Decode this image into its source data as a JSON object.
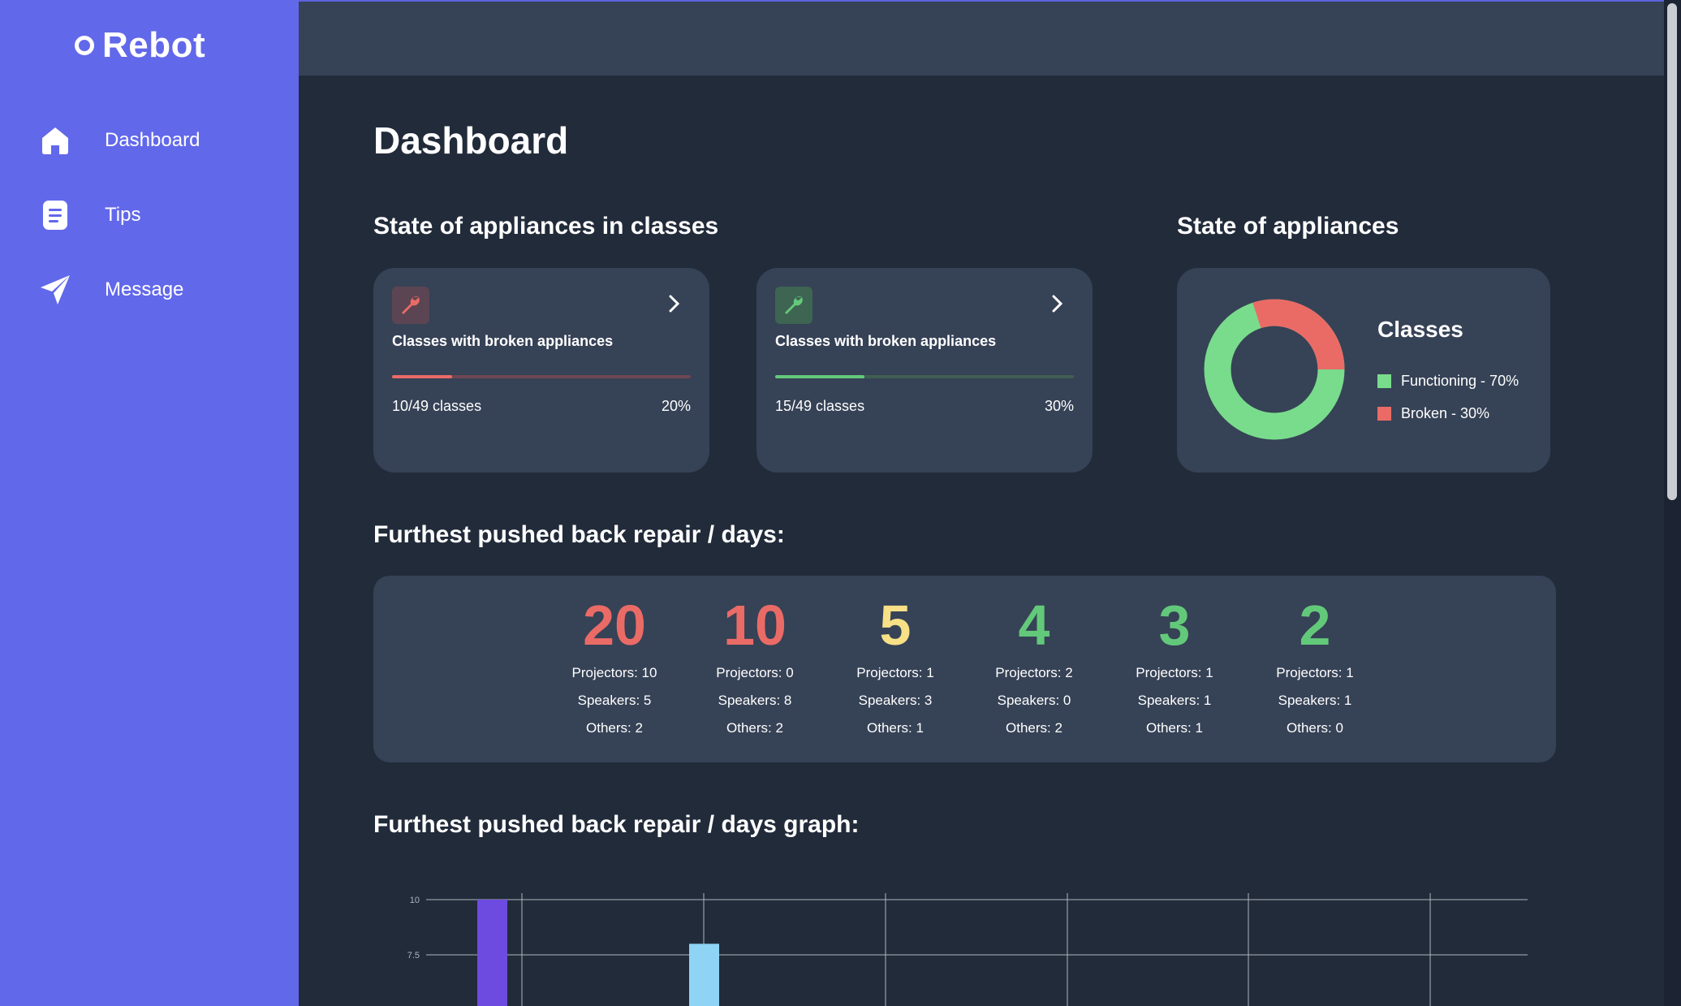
{
  "app": {
    "name": "Rebot"
  },
  "sidebar": {
    "items": [
      {
        "label": "Dashboard",
        "icon": "home-icon"
      },
      {
        "label": "Tips",
        "icon": "document-icon"
      },
      {
        "label": "Message",
        "icon": "send-icon"
      }
    ]
  },
  "page": {
    "title": "Dashboard"
  },
  "classes_section": {
    "title": "State of appliances in classes",
    "cards": [
      {
        "title": "Classes with broken appliances",
        "count": "10/49 classes",
        "percent": "20%",
        "progress": 0.2,
        "color": "#ea6b66",
        "icon": "wrench-icon"
      },
      {
        "title": "Classes with broken appliances",
        "count": "15/49 classes",
        "percent": "30%",
        "progress": 0.3,
        "color": "#63c97a",
        "icon": "wrench-icon"
      }
    ]
  },
  "appliances_section": {
    "title": "State of appliances",
    "legend_title": "Classes",
    "legend": [
      {
        "label": "Functioning - 70%",
        "color": "#79dc8c",
        "value": 70
      },
      {
        "label": "Broken - 30%",
        "color": "#ea6b66",
        "value": 30
      }
    ]
  },
  "repair_section": {
    "title": "Furthest pushed back repair / days:",
    "stats": [
      {
        "days": "20",
        "color": "#ea6b66",
        "projectors": "Projectors: 10",
        "speakers": "Speakers: 5",
        "others": "Others: 2"
      },
      {
        "days": "10",
        "color": "#ea6b66",
        "projectors": "Projectors: 0",
        "speakers": "Speakers: 8",
        "others": "Others: 2"
      },
      {
        "days": "5",
        "color": "#f7e086",
        "projectors": "Projectors: 1",
        "speakers": "Speakers: 3",
        "others": "Others: 1"
      },
      {
        "days": "4",
        "color": "#63c97a",
        "projectors": "Projectors: 2",
        "speakers": "Speakers: 0",
        "others": "Others: 2"
      },
      {
        "days": "3",
        "color": "#63c97a",
        "projectors": "Projectors: 1",
        "speakers": "Speakers: 1",
        "others": "Others: 1"
      },
      {
        "days": "2",
        "color": "#63c97a",
        "projectors": "Projectors: 1",
        "speakers": "Speakers: 1",
        "others": "Others: 0"
      }
    ]
  },
  "graph_section": {
    "title": "Furthest pushed back repair / days graph:"
  },
  "chart_data": {
    "type": "bar",
    "visible_ticks": [
      "10",
      "7.5"
    ],
    "y_visible_range": [
      7.5,
      10
    ],
    "grid": true,
    "series": [
      {
        "values": [
          10
        ],
        "color": "#6e4be0"
      },
      {
        "values": [
          8
        ],
        "color": "#8fd3f5"
      }
    ]
  }
}
